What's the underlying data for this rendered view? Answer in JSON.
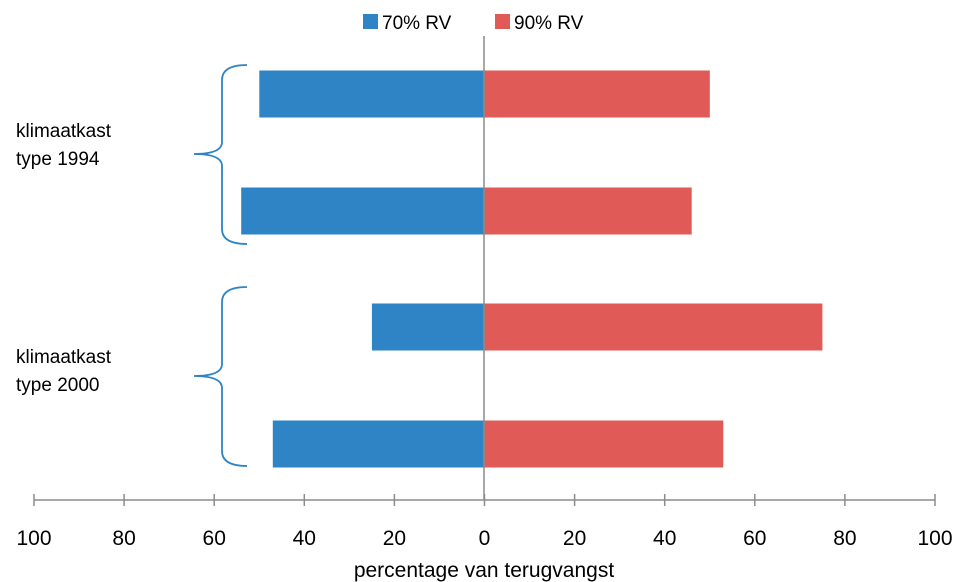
{
  "chart_data": {
    "type": "bar",
    "orientation": "horizontal",
    "layout": "diverging",
    "xlabel": "percentage van terugvangst",
    "ylabel": "",
    "xlim": [
      -100,
      100
    ],
    "tick_values": [
      -100,
      -80,
      -60,
      -40,
      -20,
      0,
      20,
      40,
      60,
      80,
      100
    ],
    "tick_labels": [
      "100",
      "80",
      "60",
      "40",
      "20",
      "0",
      "20",
      "40",
      "60",
      "80",
      "100"
    ],
    "legend_position": "top",
    "groups": [
      {
        "label_line1": "klimaatkast",
        "label_line2": "type 1994",
        "rows": [
          0,
          1
        ]
      },
      {
        "label_line1": "klimaatkast",
        "label_line2": "type 2000",
        "rows": [
          2,
          3
        ]
      }
    ],
    "series": [
      {
        "name": "70% RV",
        "color": "#2e84c5",
        "side": "left",
        "values": [
          50,
          54,
          25,
          47
        ]
      },
      {
        "name": "90% RV",
        "color": "#e05a57",
        "side": "right",
        "values": [
          50,
          46,
          75,
          53
        ]
      }
    ]
  }
}
